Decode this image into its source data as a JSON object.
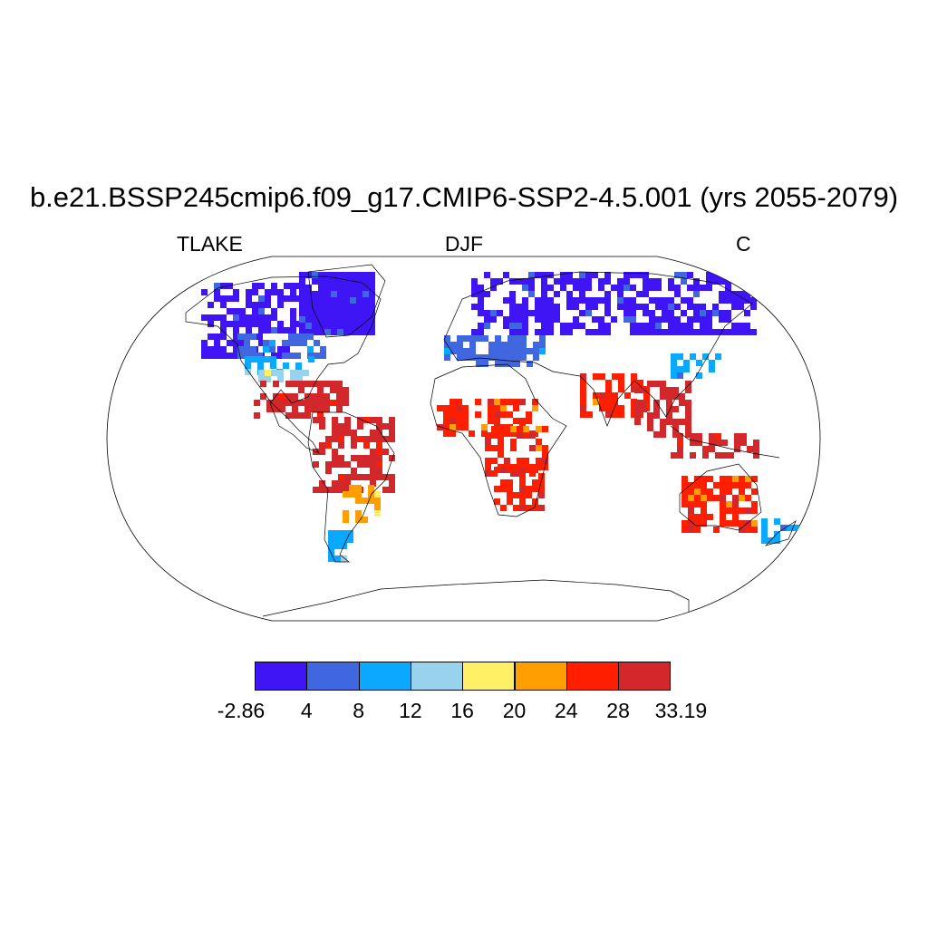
{
  "title": "b.e21.BSSP245cmip6.f09_g17.CMIP6-SSP2-4.5.001 (yrs 2055-2079)",
  "variable": "TLAKE",
  "season": "DJF",
  "units": "C",
  "colorbar": {
    "labels": [
      "-2.86",
      "4",
      "8",
      "12",
      "16",
      "20",
      "24",
      "28",
      "33.19"
    ],
    "colors": [
      "#3f14f5",
      "#4067e0",
      "#0aa8ff",
      "#98d2ec",
      "#fff066",
      "#ff9e00",
      "#ff1e00",
      "#d3282b"
    ]
  },
  "map": {
    "projection": "robinson",
    "regions": [
      {
        "name": "Canada and Arctic North America",
        "bin": 0
      },
      {
        "name": "Greenland",
        "bin": 0
      },
      {
        "name": "Scandinavia and Northern Eurasia",
        "bin": 0
      },
      {
        "name": "Central United States",
        "bin": 1
      },
      {
        "name": "Southern United States",
        "bin": 2
      },
      {
        "name": "Gulf Coast",
        "bin": 3
      },
      {
        "name": "Mexico and Central America",
        "bin": 7
      },
      {
        "name": "Amazon Basin",
        "bin": 7
      },
      {
        "name": "Southern Brazil",
        "bin": 5
      },
      {
        "name": "Patagonia",
        "bin": 2
      },
      {
        "name": "Central Europe",
        "bin": 1
      },
      {
        "name": "Sahel",
        "bin": 6
      },
      {
        "name": "Central Africa",
        "bin": 6
      },
      {
        "name": "Southern Africa",
        "bin": 6
      },
      {
        "name": "Indian Subcontinent",
        "bin": 6
      },
      {
        "name": "Southeast Asia",
        "bin": 7
      },
      {
        "name": "East China",
        "bin": 2
      },
      {
        "name": "Indonesia",
        "bin": 7
      },
      {
        "name": "Australia",
        "bin": 6
      },
      {
        "name": "New Zealand",
        "bin": 2
      }
    ]
  }
}
